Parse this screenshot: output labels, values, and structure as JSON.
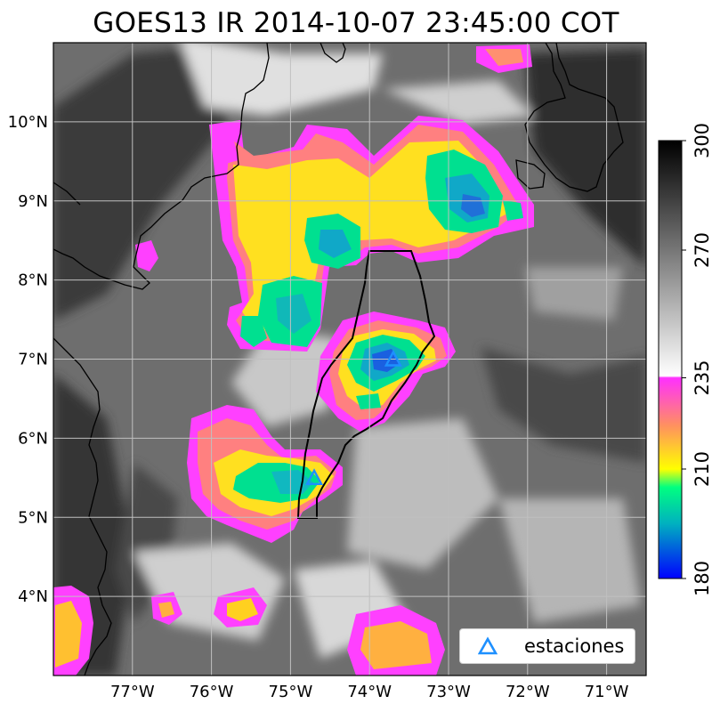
{
  "title": "GOES13 IR  2014-10-07 23:45:00 COT",
  "map": {
    "lon_range": [
      -78,
      -70.5
    ],
    "lat_range": [
      3,
      11
    ],
    "lon_ticks": [
      {
        "value": -77,
        "label": "77°W"
      },
      {
        "value": -76,
        "label": "76°W"
      },
      {
        "value": -75,
        "label": "75°W"
      },
      {
        "value": -74,
        "label": "74°W"
      },
      {
        "value": -73,
        "label": "73°W"
      },
      {
        "value": -72,
        "label": "72°W"
      },
      {
        "value": -71,
        "label": "71°W"
      }
    ],
    "lat_ticks": [
      {
        "value": 4,
        "label": "4°N"
      },
      {
        "value": 5,
        "label": "5°N"
      },
      {
        "value": 6,
        "label": "6°N"
      },
      {
        "value": 7,
        "label": "7°N"
      },
      {
        "value": 8,
        "label": "8°N"
      },
      {
        "value": 9,
        "label": "9°N"
      },
      {
        "value": 10,
        "label": "10°N"
      }
    ],
    "gridlines": true
  },
  "colorbar": {
    "min": 180,
    "max": 300,
    "ticks": [
      {
        "value": 180,
        "label": "180"
      },
      {
        "value": 210,
        "label": "210"
      },
      {
        "value": 235,
        "label": "235"
      },
      {
        "value": 270,
        "label": "270"
      },
      {
        "value": 300,
        "label": "300"
      }
    ],
    "colors": {
      "c180": "#0000ff",
      "c195": "#00b0c0",
      "c205": "#00ff80",
      "c210": "#ffff00",
      "c222": "#ff9060",
      "c235": "#ff30ff",
      "c236": "#ffffff",
      "c300": "#000000"
    }
  },
  "stations": [
    {
      "lon": -73.7,
      "lat": 7.0
    },
    {
      "lon": -74.7,
      "lat": 5.5
    }
  ],
  "legend": {
    "label": "estaciones",
    "position": "lower-right",
    "marker_color": "#1e90ff"
  }
}
